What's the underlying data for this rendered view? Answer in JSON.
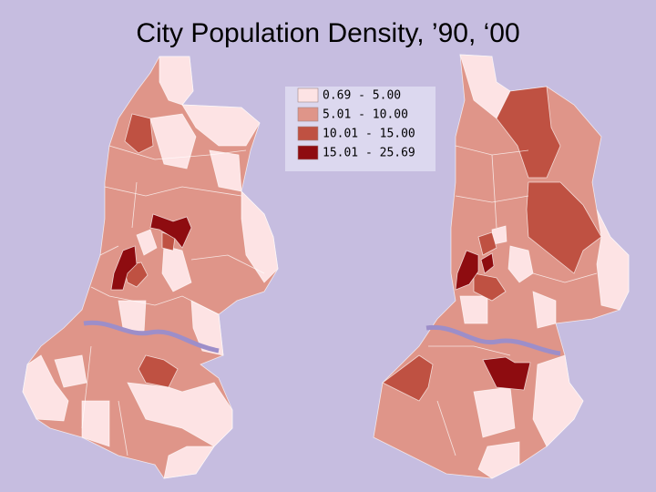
{
  "title": "City Population Density, ’90, ‘00",
  "legend": {
    "items": [
      {
        "label": "0.69 - 5.00",
        "color": "#fde3e4"
      },
      {
        "label": "5.01 - 10.00",
        "color": "#df9589"
      },
      {
        "label": "10.01 - 15.00",
        "color": "#bf5142"
      },
      {
        "label": "15.01 - 25.69",
        "color": "#8e0c10"
      }
    ]
  }
}
